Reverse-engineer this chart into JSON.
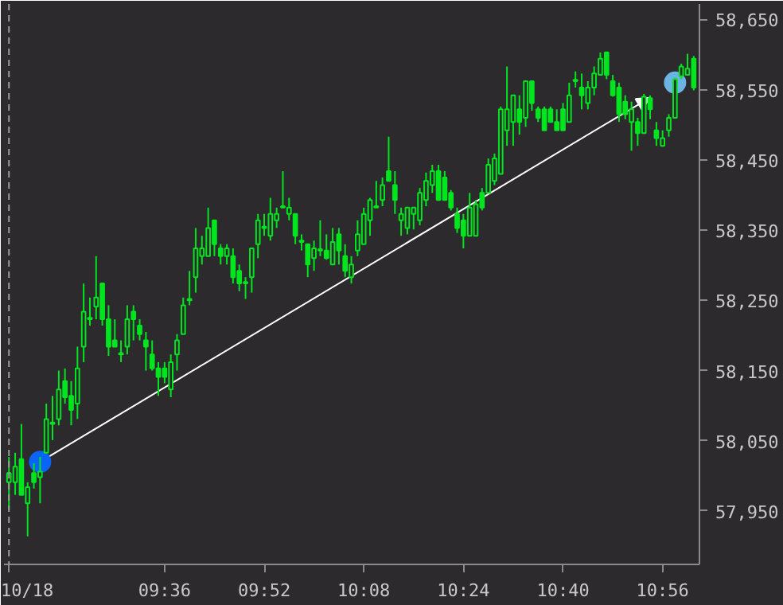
{
  "chart_data": {
    "type": "candlestick",
    "x": [
      9.1833,
      9.2,
      9.2167,
      9.2333,
      9.25,
      9.2667,
      9.2833,
      9.3,
      9.3167,
      9.3333,
      9.35,
      9.3667,
      9.3833,
      9.4,
      9.4167,
      9.4333,
      9.45,
      9.4667,
      9.4833,
      9.5,
      9.5167,
      9.5333,
      9.55,
      9.5667,
      9.5833,
      9.6,
      9.6167,
      9.6333,
      9.65,
      9.6667,
      9.6833,
      9.7,
      9.7167,
      9.7333,
      9.75,
      9.7667,
      9.7833,
      9.8,
      9.8167,
      9.8333,
      9.85,
      9.8667,
      9.8833,
      9.9,
      9.9167,
      9.9333,
      9.95,
      9.9667,
      9.9833,
      10.0,
      10.0167,
      10.0333,
      10.05,
      10.0667,
      10.0833,
      10.1,
      10.1167,
      10.1333,
      10.15,
      10.1667,
      10.1833,
      10.2,
      10.2167,
      10.2333,
      10.25,
      10.2667,
      10.2833,
      10.3,
      10.3167,
      10.3333,
      10.35,
      10.3667,
      10.3833,
      10.4,
      10.4167,
      10.4333,
      10.45,
      10.4667,
      10.4833,
      10.5,
      10.5167,
      10.5333,
      10.55,
      10.5667,
      10.5833,
      10.6,
      10.6167,
      10.6333,
      10.65,
      10.6667,
      10.6833,
      10.7,
      10.7167,
      10.7333,
      10.75,
      10.7667,
      10.7833,
      10.8,
      10.8167,
      10.8333,
      10.85,
      10.8667,
      10.8833,
      10.9,
      10.9167,
      10.9333,
      10.95,
      10.9667,
      10.9833,
      11.0,
      11.0167
    ],
    "ohlc": [
      [
        57991,
        58027,
        57952,
        58004
      ],
      [
        57991,
        58033,
        57973,
        58013
      ],
      [
        58024,
        58074,
        57973,
        57973
      ],
      [
        57961,
        57991,
        57914,
        57984
      ],
      [
        58004,
        58018,
        57982,
        57991
      ],
      [
        57998,
        58027,
        57961,
        58006
      ],
      [
        58033,
        58103,
        58033,
        58081
      ],
      [
        58074,
        58114,
        58051,
        58076
      ],
      [
        58081,
        58150,
        58072,
        58123
      ],
      [
        58135,
        58153,
        58103,
        58112
      ],
      [
        58114,
        58135,
        58072,
        58094
      ],
      [
        58103,
        58184,
        58081,
        58153
      ],
      [
        58184,
        58274,
        58162,
        58234
      ],
      [
        58223,
        58254,
        58214,
        58225
      ],
      [
        58241,
        58313,
        58223,
        58254
      ],
      [
        58274,
        58274,
        58214,
        58223
      ],
      [
        58223,
        58243,
        58171,
        58184
      ],
      [
        58193,
        58223,
        58184,
        58184
      ],
      [
        58173,
        58193,
        58162,
        58175
      ],
      [
        58184,
        58243,
        58173,
        58223
      ],
      [
        58234,
        58243,
        58193,
        58223
      ],
      [
        58214,
        58223,
        58193,
        58202
      ],
      [
        58193,
        58205,
        58150,
        58184
      ],
      [
        58173,
        58193,
        58150,
        58153
      ],
      [
        58153,
        58162,
        58114,
        58141
      ],
      [
        58153,
        58162,
        58132,
        58141
      ],
      [
        58123,
        58173,
        58112,
        58162
      ],
      [
        58173,
        58202,
        58150,
        58193
      ],
      [
        58202,
        58254,
        58202,
        58243
      ],
      [
        58250,
        58292,
        58243,
        58252
      ],
      [
        58283,
        58353,
        58261,
        58324
      ],
      [
        58313,
        58342,
        58301,
        58324
      ],
      [
        58313,
        58382,
        58313,
        58353
      ],
      [
        58364,
        58364,
        58313,
        58330
      ],
      [
        58324,
        58330,
        58301,
        58313
      ],
      [
        58313,
        58330,
        58301,
        58324
      ],
      [
        58313,
        58324,
        58274,
        58283
      ],
      [
        58292,
        58301,
        58263,
        58274
      ],
      [
        58274,
        58283,
        58252,
        58276
      ],
      [
        58283,
        58324,
        58261,
        58324
      ],
      [
        58330,
        58373,
        58310,
        58364
      ],
      [
        58353,
        58373,
        58342,
        58355
      ],
      [
        58342,
        58396,
        58335,
        58373
      ],
      [
        58364,
        58382,
        58353,
        58373
      ],
      [
        58382,
        58434,
        58382,
        58384
      ],
      [
        58373,
        58396,
        58364,
        58382
      ],
      [
        58373,
        58373,
        58330,
        58342
      ],
      [
        58333,
        58344,
        58321,
        58335
      ],
      [
        58330,
        58330,
        58283,
        58301
      ],
      [
        58310,
        58335,
        58292,
        58324
      ],
      [
        58321,
        58364,
        58313,
        58323
      ],
      [
        58321,
        58344,
        58308,
        58310
      ],
      [
        58301,
        58353,
        58301,
        58333
      ],
      [
        58344,
        58353,
        58301,
        58321
      ],
      [
        58313,
        58330,
        58283,
        58292
      ],
      [
        58283,
        58313,
        58274,
        58301
      ],
      [
        58321,
        58364,
        58313,
        58344
      ],
      [
        58330,
        58382,
        58330,
        58373
      ],
      [
        58364,
        58396,
        58342,
        58393
      ],
      [
        58382,
        58420,
        58382,
        58384
      ],
      [
        58393,
        58425,
        58384,
        58414
      ],
      [
        58434,
        58483,
        58420,
        58420
      ],
      [
        58414,
        58434,
        58373,
        58393
      ],
      [
        58364,
        58382,
        58342,
        58373
      ],
      [
        58353,
        58382,
        58344,
        58382
      ],
      [
        58373,
        58382,
        58351,
        58382
      ],
      [
        58364,
        58410,
        58357,
        58403
      ],
      [
        58393,
        58432,
        58384,
        58420
      ],
      [
        58414,
        58443,
        58403,
        58434
      ],
      [
        58434,
        58443,
        58393,
        58393
      ],
      [
        58425,
        58434,
        58393,
        58393
      ],
      [
        58403,
        58407,
        58378,
        58382
      ],
      [
        58373,
        58382,
        58346,
        58353
      ],
      [
        58364,
        58373,
        58324,
        58342
      ],
      [
        58342,
        58403,
        58342,
        58382
      ],
      [
        58342,
        58393,
        58342,
        58387
      ],
      [
        58403,
        58410,
        58378,
        58382
      ],
      [
        58403,
        58452,
        58403,
        58443
      ],
      [
        58420,
        58459,
        58414,
        58452
      ],
      [
        58430,
        58526,
        58430,
        58522
      ],
      [
        58492,
        58583,
        58470,
        58522
      ],
      [
        58504,
        58542,
        58470,
        58542
      ],
      [
        58522,
        58542,
        58486,
        58504
      ],
      [
        58510,
        58562,
        58497,
        58562
      ],
      [
        58562,
        58562,
        58520,
        58531
      ],
      [
        58522,
        58526,
        58504,
        58510
      ],
      [
        58522,
        58526,
        58492,
        58492
      ],
      [
        58522,
        58526,
        58504,
        58504
      ],
      [
        58504,
        58522,
        58492,
        58492
      ],
      [
        58522,
        58531,
        58492,
        58492
      ],
      [
        58504,
        58560,
        58504,
        58542
      ],
      [
        58562,
        58576,
        58553,
        58564
      ],
      [
        58553,
        58573,
        58522,
        58542
      ],
      [
        58531,
        58562,
        58522,
        58553
      ],
      [
        58553,
        58583,
        58542,
        58573
      ],
      [
        58571,
        58603,
        58571,
        58594
      ],
      [
        58603,
        58603,
        58565,
        58571
      ],
      [
        58562,
        58571,
        58540,
        58542
      ],
      [
        58553,
        58560,
        58504,
        58515
      ],
      [
        58533,
        58542,
        58508,
        58515
      ],
      [
        58504,
        58533,
        58463,
        58522
      ],
      [
        58504,
        58510,
        58470,
        58488
      ],
      [
        58488,
        58544,
        58488,
        58540
      ],
      [
        58538,
        58542,
        58508,
        58522
      ],
      [
        58492,
        58504,
        58470,
        58481
      ],
      [
        58470,
        58492,
        58470,
        58481
      ],
      [
        58492,
        58515,
        58483,
        58510
      ],
      [
        58510,
        58567,
        58510,
        58565
      ],
      [
        58569,
        58587,
        58565,
        58583
      ],
      [
        58571,
        58601,
        58571,
        58580
      ],
      [
        58594,
        58598,
        58549,
        58553
      ]
    ],
    "color": "#00e61e",
    "series": [
      {
        "type": "scatter",
        "marker": "circle",
        "x": [
          9.2667,
          10.9667
        ],
        "values": [
          58020,
          58560
        ],
        "colors": [
          "#0a64f5",
          "#6cb4e4"
        ]
      }
    ],
    "xlim": [
      9.17,
      11.032
    ],
    "ylim": [
      57874,
      58672
    ],
    "xticks": [
      {
        "value": 9.1833,
        "label": "10/18"
      },
      {
        "value": 9.6,
        "label": "09:36"
      },
      {
        "value": 9.8667,
        "label": "09:52"
      },
      {
        "value": 10.1333,
        "label": "10:08"
      },
      {
        "value": 10.4,
        "label": "10:24"
      },
      {
        "value": 10.6667,
        "label": "10:40"
      },
      {
        "value": 10.9333,
        "label": "10:56"
      }
    ],
    "yticks": [
      {
        "value": 57950,
        "label": "57,950"
      },
      {
        "value": 58050,
        "label": "58,050"
      },
      {
        "value": 58150,
        "label": "58,150"
      },
      {
        "value": 58250,
        "label": "58,250"
      },
      {
        "value": 58350,
        "label": "58,350"
      },
      {
        "value": 58450,
        "label": "58,450"
      },
      {
        "value": 58550,
        "label": "58,550"
      },
      {
        "value": 58650,
        "label": "58,650"
      }
    ],
    "ref_lines": [
      {
        "axis": "x",
        "value": 9.1833,
        "color": "#9a9a9a",
        "line_style": "dashed"
      }
    ],
    "grid": false
  }
}
